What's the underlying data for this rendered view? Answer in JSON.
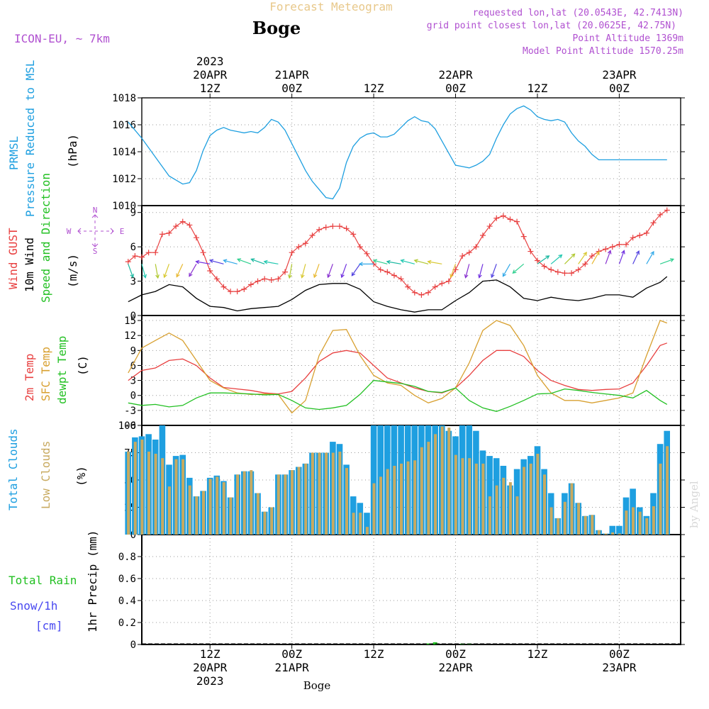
{
  "header": {
    "title": "Forecast Meteogram",
    "location": "Boge",
    "model": "ICON-EU, ~ 7km",
    "requested": "requested lon,lat (20.0543E, 42.7413N)",
    "gridpoint": "grid point closest lon,lat (20.0625E, 42.75N)",
    "point_alt": "Point Altitude 1369m",
    "model_alt": "Model Point Altitude 1570.25m",
    "footer": "Boge",
    "watermark": "by Angel"
  },
  "time_axis": {
    "top_year": "2023",
    "ticks": [
      {
        "hour": 12,
        "top": [
          "20APR",
          "12Z"
        ],
        "bottom": [
          "12Z",
          "20APR",
          "2023"
        ]
      },
      {
        "hour": 24,
        "top": [
          "21APR",
          "00Z"
        ],
        "bottom": [
          "00Z",
          "21APR"
        ]
      },
      {
        "hour": 36,
        "top": [
          "12Z"
        ],
        "bottom": [
          "12Z"
        ]
      },
      {
        "hour": 48,
        "top": [
          "22APR",
          "00Z"
        ],
        "bottom": [
          "00Z",
          "22APR"
        ]
      },
      {
        "hour": 60,
        "top": [
          "12Z"
        ],
        "bottom": [
          "12Z"
        ]
      },
      {
        "hour": 72,
        "top": [
          "23APR",
          "00Z"
        ],
        "bottom": [
          "00Z",
          "23APR"
        ]
      }
    ]
  },
  "colors": {
    "pressure": "#1e9fe0",
    "gust": "#e84040",
    "wind": "#000000",
    "speed_dir": "#22c022",
    "temp2m": "#e84040",
    "sfc": "#d8a030",
    "dewpt": "#22c022",
    "total_clouds": "#1e9fe0",
    "low_clouds": "#c8aa60",
    "rain": "#22c022",
    "snow": "#4848f0",
    "header_purple": "#b050d0",
    "title_gold": "#e8c88a"
  },
  "panels": {
    "pressure": {
      "labels": [
        "PRMSL",
        "Pressure Reduced to MSL"
      ],
      "unit": "(hPa)"
    },
    "wind": {
      "labels": [
        "Wind GUST",
        "10m Wind",
        "Speed and Direction"
      ],
      "unit": "(m/s)",
      "compass": {
        "n": "N",
        "s": "S",
        "w": "W",
        "e": "E"
      }
    },
    "temp": {
      "labels": [
        "2m Temp",
        "SFC Temp",
        "dewpt Temp"
      ],
      "unit": "(C)"
    },
    "clouds": {
      "labels": [
        "Total Clouds",
        "Low Clouds"
      ],
      "unit": "(%)"
    },
    "precip": {
      "labels": [
        "Total  Rain",
        "Snow/1h",
        "[cm]"
      ],
      "unit": "1hr Precip (mm)"
    }
  },
  "chart_data": [
    {
      "type": "line",
      "name": "pressure",
      "ylim": [
        1010,
        1018
      ],
      "yticks": [
        1010,
        1012,
        1014,
        1016,
        1018
      ],
      "x": [
        0,
        2,
        4,
        6,
        8,
        9,
        10,
        11,
        12,
        13,
        14,
        15,
        16,
        17,
        18,
        19,
        20,
        21,
        22,
        23,
        24,
        25,
        26,
        27,
        28,
        29,
        30,
        31,
        32,
        33,
        34,
        35,
        36,
        37,
        38,
        39,
        40,
        41,
        42,
        43,
        44,
        45,
        46,
        47,
        48,
        49,
        50,
        51,
        52,
        53,
        54,
        55,
        56,
        57,
        58,
        59,
        60,
        61,
        62,
        63,
        64,
        65,
        66,
        67,
        68,
        69,
        70,
        71,
        72,
        73,
        74,
        75,
        76,
        77,
        78,
        79
      ],
      "series": [
        {
          "values": [
            1016.2,
            1015.0,
            1013.6,
            1012.2,
            1011.6,
            1011.7,
            1012.6,
            1014.1,
            1015.2,
            1015.6,
            1015.8,
            1015.6,
            1015.5,
            1015.4,
            1015.5,
            1015.4,
            1015.8,
            1016.4,
            1016.2,
            1015.6,
            1014.6,
            1013.6,
            1012.6,
            1011.8,
            1011.2,
            1010.6,
            1010.5,
            1011.3,
            1013.2,
            1014.4,
            1015.0,
            1015.3,
            1015.4,
            1015.1,
            1015.1,
            1015.3,
            1015.8,
            1016.3,
            1016.6,
            1016.3,
            1016.2,
            1015.7,
            1014.8,
            1013.9,
            1013.0,
            1012.9,
            1012.8,
            1013.0,
            1013.3,
            1013.8,
            1015.0,
            1016.0,
            1016.8,
            1017.2,
            1017.4,
            1017.1,
            1016.6,
            1016.4,
            1016.3,
            1016.4,
            1016.2,
            1015.4,
            1014.8,
            1014.4,
            1013.8,
            1013.4,
            1013.4,
            1013.4,
            1013.4,
            1013.4,
            1013.4,
            1013.4,
            1013.4,
            1013.4,
            1013.4,
            1013.4
          ]
        }
      ]
    },
    {
      "type": "line",
      "name": "wind",
      "ylim": [
        0,
        9.6
      ],
      "yticks": [
        0,
        3,
        6,
        9
      ],
      "gust": {
        "x": [
          0,
          1,
          2,
          3,
          4,
          5,
          6,
          7,
          8,
          9,
          10,
          11,
          12,
          13,
          14,
          15,
          16,
          17,
          18,
          19,
          20,
          21,
          22,
          23,
          24,
          25,
          26,
          27,
          28,
          29,
          30,
          31,
          32,
          33,
          34,
          35,
          36,
          37,
          38,
          39,
          40,
          41,
          42,
          43,
          44,
          45,
          46,
          47,
          48,
          49,
          50,
          51,
          52,
          53,
          54,
          55,
          56,
          57,
          58,
          59,
          60,
          61,
          62,
          63,
          64,
          65,
          66,
          67,
          68,
          69,
          70,
          71,
          72,
          73,
          74,
          75,
          76,
          77,
          78,
          79
        ],
        "values": [
          4.7,
          5.2,
          5.1,
          5.5,
          5.5,
          7.1,
          7.2,
          7.8,
          8.2,
          7.9,
          6.8,
          5.5,
          3.9,
          3.2,
          2.5,
          2.1,
          2.1,
          2.3,
          2.7,
          3.0,
          3.2,
          3.1,
          3.2,
          3.8,
          5.5,
          6.0,
          6.3,
          7.0,
          7.5,
          7.7,
          7.8,
          7.8,
          7.6,
          7.1,
          6.0,
          5.4,
          4.5,
          4.0,
          3.8,
          3.5,
          3.2,
          2.5,
          2.0,
          1.8,
          2.0,
          2.5,
          2.8,
          3.0,
          4.0,
          5.2,
          5.5,
          6.0,
          7.0,
          7.8,
          8.5,
          8.7,
          8.4,
          8.2,
          6.9,
          5.6,
          4.8,
          4.3,
          4.0,
          3.8,
          3.7,
          3.7,
          4.0,
          4.5,
          5.2,
          5.6,
          5.8,
          6.0,
          6.2,
          6.2,
          6.8,
          7.0,
          7.2,
          8.1,
          8.8,
          9.2
        ]
      },
      "wind10m": {
        "x": [
          0,
          2,
          4,
          6,
          8,
          10,
          12,
          14,
          16,
          18,
          20,
          22,
          24,
          26,
          28,
          30,
          32,
          34,
          36,
          38,
          40,
          42,
          44,
          46,
          48,
          50,
          52,
          54,
          56,
          58,
          60,
          62,
          64,
          66,
          68,
          70,
          72,
          74,
          76,
          78,
          79
        ],
        "values": [
          1.2,
          1.8,
          2.1,
          2.7,
          2.5,
          1.5,
          0.8,
          0.7,
          0.4,
          0.6,
          0.7,
          0.8,
          1.4,
          2.2,
          2.7,
          2.8,
          2.8,
          2.3,
          1.2,
          0.8,
          0.5,
          0.3,
          0.5,
          0.5,
          1.3,
          2.0,
          3.0,
          3.1,
          2.5,
          1.5,
          1.3,
          1.6,
          1.4,
          1.3,
          1.5,
          1.8,
          1.8,
          1.6,
          2.4,
          2.9,
          3.4
        ]
      },
      "direction_arrows": {
        "y": 4.5,
        "x": [
          0,
          2,
          4,
          6,
          8,
          10,
          12,
          14,
          16,
          18,
          20,
          22,
          24,
          26,
          28,
          30,
          32,
          34,
          36,
          38,
          40,
          42,
          44,
          46,
          48,
          50,
          52,
          54,
          56,
          58,
          60,
          62,
          64,
          66,
          68,
          70,
          72,
          74,
          76,
          78
        ],
        "angles": [
          160,
          165,
          170,
          200,
          205,
          210,
          280,
          285,
          285,
          290,
          290,
          280,
          190,
          195,
          200,
          200,
          200,
          215,
          270,
          285,
          280,
          285,
          285,
          280,
          200,
          195,
          195,
          200,
          210,
          230,
          55,
          50,
          45,
          35,
          30,
          20,
          20,
          25,
          30,
          70
        ]
      }
    },
    {
      "type": "line",
      "name": "temperature",
      "ylim": [
        -6,
        16
      ],
      "yticks": [
        -6,
        -3,
        0,
        3,
        6,
        9,
        12,
        15
      ],
      "x": [
        0,
        2,
        4,
        6,
        8,
        10,
        12,
        14,
        16,
        18,
        20,
        22,
        24,
        26,
        28,
        30,
        32,
        34,
        36,
        38,
        40,
        42,
        44,
        46,
        48,
        50,
        52,
        54,
        56,
        58,
        60,
        62,
        64,
        66,
        68,
        70,
        72,
        74,
        76,
        78,
        79
      ],
      "series": [
        {
          "name": "2m Temp",
          "values": [
            3,
            5,
            5.5,
            7,
            7.3,
            6.0,
            3.5,
            1.6,
            1.3,
            1.0,
            0.5,
            0.3,
            0.8,
            3.5,
            6.8,
            8.5,
            9.0,
            8.5,
            6.0,
            3.5,
            2.5,
            1.5,
            0.8,
            0.5,
            1.5,
            4.0,
            7.0,
            9.0,
            9.0,
            7.8,
            5.0,
            3.0,
            2.0,
            1.2,
            1.0,
            1.2,
            1.3,
            2.5,
            6.0,
            10.0,
            10.5
          ]
        },
        {
          "name": "SFC Temp",
          "values": [
            4.5,
            9.5,
            11,
            12.5,
            11,
            7,
            3,
            1.5,
            0.5,
            0.2,
            0.3,
            0.2,
            -3.5,
            -1,
            8,
            13,
            13.2,
            8,
            4,
            2.5,
            2.0,
            0,
            -1.5,
            -0.6,
            1.5,
            6.5,
            13,
            15,
            14,
            10,
            4,
            0.5,
            -1,
            -1,
            -1.5,
            -1,
            -0.5,
            0.5,
            8,
            15,
            14.5
          ]
        },
        {
          "name": "dewpt Temp",
          "values": [
            -1.5,
            -2.0,
            -1.8,
            -2.3,
            -2.0,
            -0.5,
            0.5,
            0.5,
            0.4,
            0.3,
            0.1,
            0.2,
            -1.0,
            -2.5,
            -2.8,
            -2.5,
            -2.0,
            0.2,
            3.0,
            2.7,
            2.4,
            1.8,
            0.8,
            0.6,
            1.5,
            -1.0,
            -2.5,
            -3.2,
            -2.2,
            -1.0,
            0.3,
            0.4,
            1.3,
            1.0,
            0.6,
            0.3,
            0,
            -0.5,
            1.0,
            -1.0,
            -1.8
          ]
        }
      ]
    },
    {
      "type": "bar",
      "name": "clouds",
      "ylim": [
        0,
        100
      ],
      "yticks": [
        0,
        25,
        50,
        75,
        100
      ],
      "x": [
        0,
        1,
        2,
        3,
        4,
        5,
        6,
        7,
        8,
        9,
        10,
        11,
        12,
        13,
        14,
        15,
        16,
        17,
        18,
        19,
        20,
        21,
        22,
        23,
        24,
        25,
        26,
        27,
        28,
        29,
        30,
        31,
        32,
        33,
        34,
        35,
        36,
        37,
        38,
        39,
        40,
        41,
        42,
        43,
        44,
        45,
        46,
        47,
        48,
        49,
        50,
        51,
        52,
        53,
        54,
        55,
        56,
        57,
        58,
        59,
        60,
        61,
        62,
        63,
        64,
        65,
        66,
        67,
        68,
        69,
        70,
        71,
        72,
        73,
        74,
        75,
        76,
        77,
        78,
        79
      ],
      "series": [
        {
          "name": "Total Clouds",
          "values": [
            76,
            89,
            90,
            92,
            87,
            100,
            64,
            72,
            73,
            52,
            35,
            40,
            52,
            54,
            49,
            34,
            55,
            58,
            58,
            38,
            21,
            25,
            55,
            55,
            59,
            62,
            65,
            75,
            75,
            75,
            85,
            83,
            64,
            35,
            29,
            20,
            100,
            100,
            100,
            100,
            100,
            100,
            100,
            100,
            100,
            100,
            100,
            95,
            90,
            100,
            100,
            95,
            77,
            72,
            70,
            63,
            45,
            60,
            69,
            72,
            81,
            60,
            38,
            15,
            38,
            47,
            29,
            17,
            18,
            4,
            1,
            8,
            8,
            34,
            42,
            25,
            17,
            38,
            83,
            95
          ]
        },
        {
          "name": "Low Clouds",
          "values": [
            76,
            85,
            87,
            76,
            74,
            70,
            44,
            69,
            69,
            45,
            35,
            40,
            51,
            53,
            48,
            34,
            55,
            58,
            59,
            38,
            21,
            25,
            55,
            55,
            59,
            62,
            65,
            75,
            75,
            75,
            75,
            76,
            61,
            20,
            20,
            7,
            47,
            53,
            60,
            63,
            65,
            67,
            68,
            80,
            85,
            92,
            99,
            98,
            73,
            70,
            70,
            65,
            65,
            35,
            45,
            52,
            48,
            35,
            62,
            65,
            74,
            55,
            25,
            15,
            30,
            47,
            29,
            17,
            18,
            4,
            1,
            2,
            1,
            22,
            25,
            21,
            15,
            26,
            65,
            81
          ]
        }
      ]
    },
    {
      "type": "bar",
      "name": "precip",
      "ylim": [
        0,
        1.0
      ],
      "yticks": [
        0,
        0.2,
        0.4,
        0.6,
        0.8
      ],
      "series": [
        {
          "name": "Total Rain",
          "x": [
            44,
            45,
            49,
            50
          ],
          "values": [
            0.01,
            0.02,
            0.008,
            0.008
          ]
        }
      ]
    }
  ]
}
